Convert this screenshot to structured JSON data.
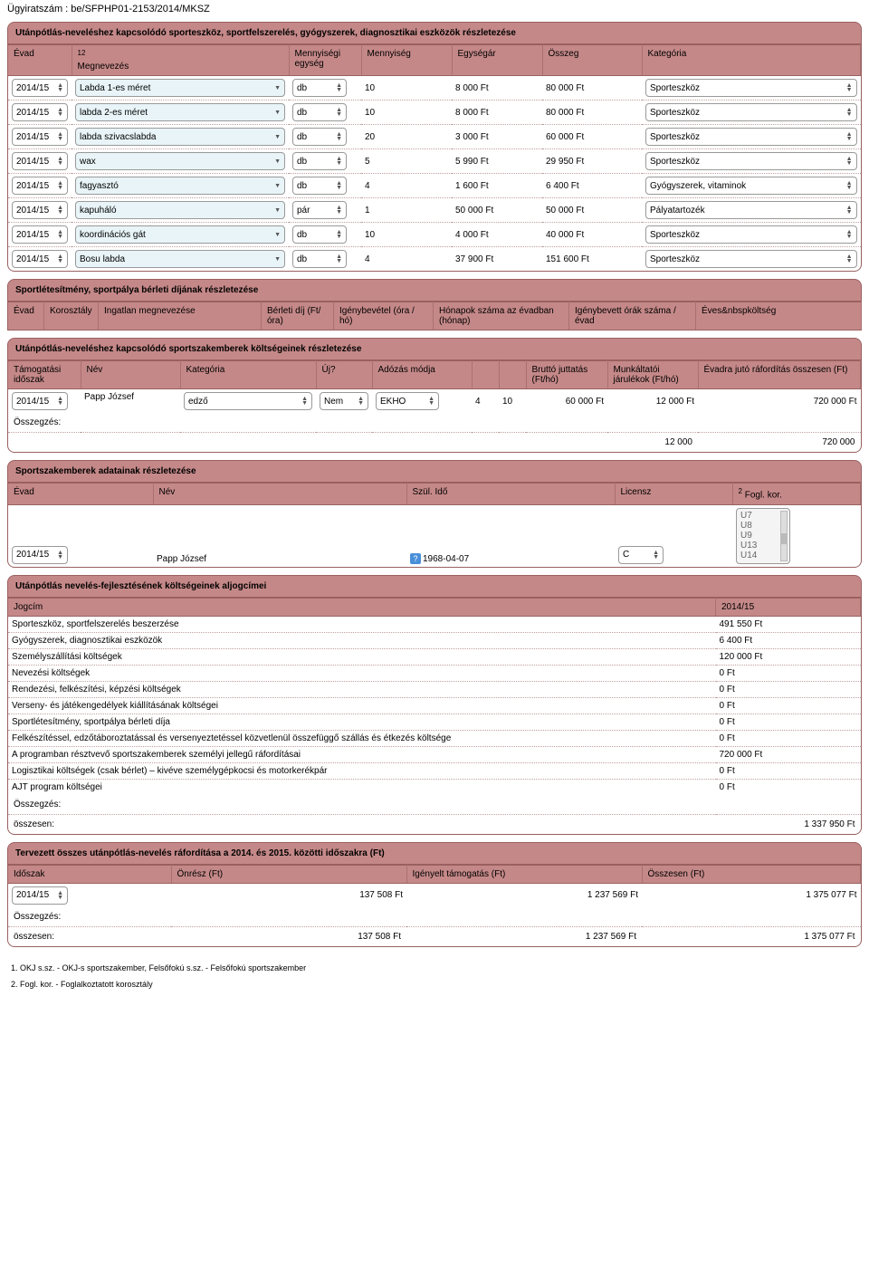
{
  "docNumber": "Ügyiratszám : be/SFPHP01-2153/2014/MKSZ",
  "equip": {
    "title": "Utánpótlás-neveléshez kapcsolódó sporteszköz, sportfelszerelés, gyógyszerek, diagnosztikai eszközök részletezése",
    "cols": {
      "c1": "Évad",
      "c2sup": "12",
      "c2": "Megnevezés",
      "c3": "Mennyiségi egység",
      "c4": "Mennyiség",
      "c5": "Egységár",
      "c6": "Összeg",
      "c7": "Kategória"
    },
    "rows": [
      {
        "evad": "2014/15",
        "megnev": "Labda 1-es méret",
        "egys": "db",
        "menny": "10",
        "ar": "8 000 Ft",
        "ossz": "80 000 Ft",
        "kat": "Sporteszköz"
      },
      {
        "evad": "2014/15",
        "megnev": "labda 2-es méret",
        "egys": "db",
        "menny": "10",
        "ar": "8 000 Ft",
        "ossz": "80 000 Ft",
        "kat": "Sporteszköz"
      },
      {
        "evad": "2014/15",
        "megnev": "labda szivacslabda",
        "egys": "db",
        "menny": "20",
        "ar": "3 000 Ft",
        "ossz": "60 000 Ft",
        "kat": "Sporteszköz"
      },
      {
        "evad": "2014/15",
        "megnev": "wax",
        "egys": "db",
        "menny": "5",
        "ar": "5 990 Ft",
        "ossz": "29 950 Ft",
        "kat": "Sporteszköz"
      },
      {
        "evad": "2014/15",
        "megnev": "fagyasztó",
        "egys": "db",
        "menny": "4",
        "ar": "1 600 Ft",
        "ossz": "6 400 Ft",
        "kat": "Gyógyszerek, vitaminok"
      },
      {
        "evad": "2014/15",
        "megnev": "kapuháló",
        "egys": "pár",
        "menny": "1",
        "ar": "50 000 Ft",
        "ossz": "50 000 Ft",
        "kat": "Pályatartozék"
      },
      {
        "evad": "2014/15",
        "megnev": "koordinációs gát",
        "egys": "db",
        "menny": "10",
        "ar": "4 000 Ft",
        "ossz": "40 000 Ft",
        "kat": "Sporteszköz"
      },
      {
        "evad": "2014/15",
        "megnev": "Bosu labda",
        "egys": "db",
        "menny": "4",
        "ar": "37 900 Ft",
        "ossz": "151 600 Ft",
        "kat": "Sporteszköz"
      }
    ]
  },
  "rental": {
    "title": "Sportlétesítmény, sportpálya bérleti díjának részletezése",
    "cols": {
      "c1": "Évad",
      "c2": "Korosztály",
      "c3": "Ingatlan megnevezése",
      "c4": "Bérleti díj (Ft/óra)",
      "c5": "Igénybevétel (óra / hó)",
      "c6": "Hónapok száma az évadban (hónap)",
      "c7": "Igénybevett órák száma / évad",
      "c8": "Éves&nbspköltség"
    }
  },
  "experts": {
    "title": "Utánpótlás-neveléshez kapcsolódó sportszakemberek költségeinek részletezése",
    "cols": {
      "c1": "Támogatási időszak",
      "c2": "Név",
      "c3": "Kategória",
      "c4": "Új?",
      "c5": "Adózás módja",
      "c6": "",
      "c7": "",
      "c8": "Bruttó juttatás (Ft/hó)",
      "c9": "Munkáltatói járulékok (Ft/hó)",
      "c10": "Évadra jutó ráfordítás összesen (Ft)"
    },
    "rows": [
      {
        "idoszak": "2014/15",
        "nev": "Papp József",
        "kat": "edző",
        "uj": "Nem",
        "ado": "EKHO",
        "v1": "4",
        "v2": "10",
        "brutto": "60 000 Ft",
        "jar": "12 000 Ft",
        "evad": "720 000 Ft"
      }
    ],
    "sumLabel": "Összegzés:",
    "sumJar": "12 000",
    "sumEvad": "720 000"
  },
  "expertData": {
    "title": "Sportszakemberek adatainak részletezése",
    "cols": {
      "c1": "Évad",
      "c2": "Név",
      "c3": "Szül. Idő",
      "c4": "Licensz",
      "c5sup": "2",
      "c5": " Fogl. kor."
    },
    "rows": [
      {
        "evad": "2014/15",
        "nev": "Papp József",
        "szul": "1968-04-07",
        "lic": "C",
        "fogl": [
          "U7",
          "U8",
          "U9",
          "U13",
          "U14"
        ]
      }
    ]
  },
  "costs": {
    "title": "Utánpótlás nevelés-fejlesztésének költségeinek aljogcímei",
    "cols": {
      "c1": "Jogcím",
      "c2": "2014/15"
    },
    "rows": [
      {
        "j": "Sporteszköz, sportfelszerelés beszerzése",
        "v": "491 550 Ft"
      },
      {
        "j": "Gyógyszerek, diagnosztikai eszközök",
        "v": "6 400 Ft"
      },
      {
        "j": "Személyszállítási költségek",
        "v": "120 000 Ft"
      },
      {
        "j": "Nevezési költségek",
        "v": "0 Ft"
      },
      {
        "j": "Rendezési, felkészítési, képzési költségek",
        "v": "0 Ft"
      },
      {
        "j": "Verseny- és játékengedélyek kiállításának költségei",
        "v": "0 Ft"
      },
      {
        "j": "Sportlétesítmény, sportpálya bérleti díja",
        "v": "0 Ft"
      },
      {
        "j": "Felkészítéssel, edzőtáboroztatással és versenyeztetéssel közvetlenül összefüggő szállás és étkezés költsége",
        "v": "0 Ft"
      },
      {
        "j": "A programban résztvevő sportszakemberek személyi jellegű ráfordításai",
        "v": "720 000 Ft"
      },
      {
        "j": "Logisztikai költségek (csak bérlet) – kivéve személygépkocsi és motorkerékpár",
        "v": "0 Ft"
      },
      {
        "j": "AJT program költségei",
        "v": "0 Ft"
      }
    ],
    "sumLabel": "Összegzés:",
    "totalLabel": "összesen:",
    "totalVal": "1 337 950 Ft"
  },
  "planned": {
    "title": "Tervezett összes utánpótlás-nevelés ráfordítása a 2014. és 2015. közötti időszakra (Ft)",
    "cols": {
      "c1": "Időszak",
      "c2": "Önrész (Ft)",
      "c3": "Igényelt támogatás (Ft)",
      "c4": "Összesen (Ft)"
    },
    "rows": [
      {
        "idoszak": "2014/15",
        "onresz": "137 508 Ft",
        "igeny": "1 237 569 Ft",
        "ossz": "1 375 077 Ft"
      }
    ],
    "sumLabel": "Összegzés:",
    "totalLabel": "összesen:",
    "onresz": "137 508 Ft",
    "igeny": "1 237 569 Ft",
    "ossz": "1 375 077 Ft"
  },
  "footnotes": {
    "f1": "1. OKJ s.sz. - OKJ-s sportszakember, Felsőfokú s.sz. - Felsőfokú sportszakember",
    "f2": "2. Fogl. kor. - Foglalkoztatott korosztály"
  },
  "style": {
    "headerBg": "#c58888",
    "border": "#9a6060",
    "inputBg": "#e8f4f8"
  }
}
